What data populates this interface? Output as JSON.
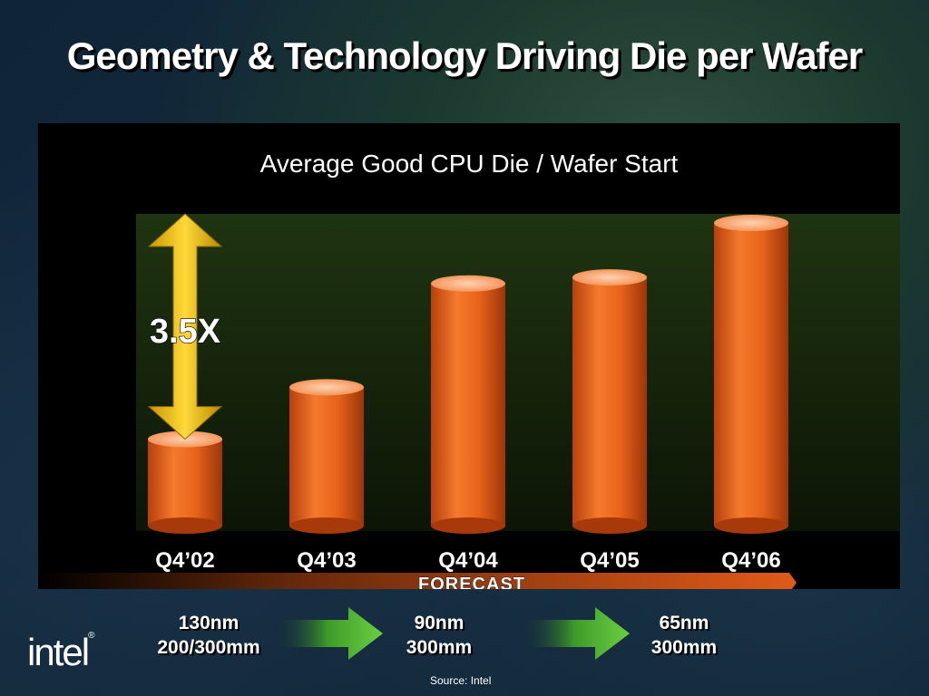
{
  "slide": {
    "title": "Geometry & Technology Driving Die per Wafer",
    "logo": "intel",
    "source": "Source: Intel"
  },
  "chart_data": {
    "type": "bar",
    "title": "Average Good CPU Die / Wafer Start",
    "categories": [
      "Q4’02",
      "Q4’03",
      "Q4’04",
      "Q4’05",
      "Q4’06"
    ],
    "values": [
      1.0,
      1.6,
      2.8,
      2.87,
      3.5
    ],
    "xlabel": "",
    "ylabel": "",
    "ylim": [
      0,
      3.5
    ],
    "grid": false,
    "legend": "none",
    "bar_color": "#e8621a",
    "annotations": [
      {
        "text": "3.5X",
        "type": "double-arrow",
        "color": "#f0c419"
      },
      {
        "text": "FORECAST",
        "type": "arrow-band",
        "color": "#d9541a"
      }
    ]
  },
  "process_nodes": [
    {
      "geometry": "130nm",
      "wafer": "200/300mm"
    },
    {
      "geometry": "90nm",
      "wafer": "300mm"
    },
    {
      "geometry": "65nm",
      "wafer": "300mm"
    }
  ],
  "colors": {
    "bar": "#e8621a",
    "plot_bg": "#1a2a0e",
    "multiplier_arrow": "#f0c419",
    "transition_arrow": "#56c238"
  }
}
